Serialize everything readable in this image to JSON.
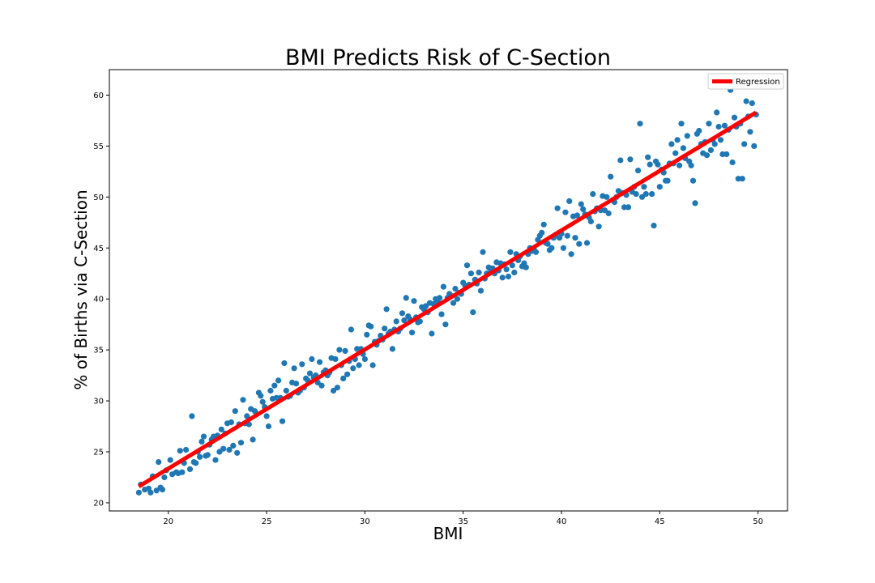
{
  "chart_data": {
    "type": "scatter",
    "title": "BMI Predicts Risk of C-Section",
    "xlabel": "BMI",
    "ylabel": "% of Births via C-Section",
    "xlim": [
      17.0,
      51.5
    ],
    "ylim": [
      19.2,
      62.5
    ],
    "xticks": [
      20,
      25,
      30,
      35,
      40,
      45,
      50
    ],
    "yticks": [
      20,
      25,
      30,
      35,
      40,
      45,
      50,
      55,
      60
    ],
    "grid": false,
    "legend": {
      "placement": "top-right",
      "entries": [
        "Regression"
      ]
    },
    "colors": {
      "points": "#1f77b4",
      "regression": "#ff0000"
    },
    "regression": {
      "name": "Regression",
      "x": [
        18.5,
        49.9
      ],
      "y": [
        21.6,
        58.3
      ]
    },
    "points": [
      [
        18.5,
        21.0
      ],
      [
        18.6,
        21.8
      ],
      [
        18.8,
        21.3
      ],
      [
        19.0,
        21.4
      ],
      [
        19.1,
        21.0
      ],
      [
        19.2,
        22.6
      ],
      [
        19.4,
        21.2
      ],
      [
        19.5,
        24.0
      ],
      [
        19.6,
        21.5
      ],
      [
        19.7,
        21.3
      ],
      [
        19.8,
        22.5
      ],
      [
        19.9,
        23.2
      ],
      [
        20.1,
        24.2
      ],
      [
        20.2,
        22.8
      ],
      [
        20.4,
        23.0
      ],
      [
        20.5,
        22.9
      ],
      [
        20.6,
        25.1
      ],
      [
        20.7,
        23.0
      ],
      [
        20.8,
        23.9
      ],
      [
        20.9,
        25.2
      ],
      [
        21.1,
        23.3
      ],
      [
        21.2,
        28.5
      ],
      [
        21.3,
        24.0
      ],
      [
        21.4,
        23.9
      ],
      [
        21.5,
        25.0
      ],
      [
        21.6,
        24.5
      ],
      [
        21.7,
        26.0
      ],
      [
        21.8,
        26.5
      ],
      [
        21.9,
        24.6
      ],
      [
        22.0,
        24.7
      ],
      [
        22.1,
        25.7
      ],
      [
        22.2,
        26.2
      ],
      [
        22.3,
        26.5
      ],
      [
        22.4,
        24.2
      ],
      [
        22.5,
        26.6
      ],
      [
        22.6,
        25.0
      ],
      [
        22.7,
        27.2
      ],
      [
        22.8,
        25.3
      ],
      [
        22.9,
        26.8
      ],
      [
        23.0,
        27.8
      ],
      [
        23.1,
        25.2
      ],
      [
        23.2,
        27.9
      ],
      [
        23.3,
        25.6
      ],
      [
        23.4,
        29.0
      ],
      [
        23.5,
        24.9
      ],
      [
        23.6,
        27.7
      ],
      [
        23.7,
        25.9
      ],
      [
        23.8,
        30.1
      ],
      [
        23.9,
        27.8
      ],
      [
        24.0,
        28.5
      ],
      [
        24.1,
        27.7
      ],
      [
        24.2,
        29.2
      ],
      [
        24.3,
        26.2
      ],
      [
        24.4,
        29.0
      ],
      [
        24.5,
        28.7
      ],
      [
        24.6,
        30.8
      ],
      [
        24.7,
        30.5
      ],
      [
        24.8,
        29.9
      ],
      [
        24.9,
        29.4
      ],
      [
        25.0,
        28.5
      ],
      [
        25.1,
        27.5
      ],
      [
        25.2,
        31.0
      ],
      [
        25.3,
        30.2
      ],
      [
        25.4,
        31.5
      ],
      [
        25.5,
        30.3
      ],
      [
        25.6,
        32.0
      ],
      [
        25.7,
        30.3
      ],
      [
        25.8,
        28.0
      ],
      [
        25.9,
        33.7
      ],
      [
        26.0,
        31.0
      ],
      [
        26.1,
        30.4
      ],
      [
        26.2,
        30.5
      ],
      [
        26.3,
        31.8
      ],
      [
        26.4,
        33.2
      ],
      [
        26.5,
        31.7
      ],
      [
        26.6,
        30.8
      ],
      [
        26.7,
        31.0
      ],
      [
        26.8,
        33.6
      ],
      [
        26.9,
        31.3
      ],
      [
        27.0,
        32.2
      ],
      [
        27.1,
        32.0
      ],
      [
        27.2,
        32.7
      ],
      [
        27.3,
        34.1
      ],
      [
        27.4,
        32.3
      ],
      [
        27.5,
        32.5
      ],
      [
        27.6,
        31.8
      ],
      [
        27.7,
        33.8
      ],
      [
        27.8,
        31.5
      ],
      [
        27.9,
        32.8
      ],
      [
        28.0,
        33.0
      ],
      [
        28.1,
        32.5
      ],
      [
        28.2,
        32.8
      ],
      [
        28.3,
        34.2
      ],
      [
        28.4,
        31.0
      ],
      [
        28.5,
        34.1
      ],
      [
        28.6,
        31.3
      ],
      [
        28.7,
        35.0
      ],
      [
        28.8,
        33.5
      ],
      [
        28.9,
        32.2
      ],
      [
        29.0,
        34.9
      ],
      [
        29.1,
        32.6
      ],
      [
        29.2,
        33.9
      ],
      [
        29.3,
        37.0
      ],
      [
        29.4,
        33.2
      ],
      [
        29.5,
        34.1
      ],
      [
        29.6,
        35.1
      ],
      [
        29.7,
        33.5
      ],
      [
        29.8,
        35.1
      ],
      [
        29.9,
        34.6
      ],
      [
        30.0,
        34.1
      ],
      [
        30.1,
        36.5
      ],
      [
        30.2,
        37.4
      ],
      [
        30.3,
        37.3
      ],
      [
        30.4,
        33.5
      ],
      [
        30.5,
        35.8
      ],
      [
        30.6,
        35.5
      ],
      [
        30.7,
        35.9
      ],
      [
        30.8,
        36.4
      ],
      [
        30.9,
        36.0
      ],
      [
        31.0,
        37.1
      ],
      [
        31.1,
        39.0
      ],
      [
        31.2,
        36.6
      ],
      [
        31.3,
        36.8
      ],
      [
        31.4,
        35.1
      ],
      [
        31.5,
        37.0
      ],
      [
        31.6,
        37.8
      ],
      [
        31.7,
        36.8
      ],
      [
        31.8,
        37.1
      ],
      [
        31.9,
        38.6
      ],
      [
        32.0,
        37.9
      ],
      [
        32.1,
        40.1
      ],
      [
        32.2,
        38.3
      ],
      [
        32.3,
        38.0
      ],
      [
        32.4,
        36.7
      ],
      [
        32.5,
        39.8
      ],
      [
        32.6,
        38.2
      ],
      [
        32.7,
        37.7
      ],
      [
        32.8,
        37.8
      ],
      [
        32.9,
        39.2
      ],
      [
        33.0,
        39.0
      ],
      [
        33.1,
        39.3
      ],
      [
        33.2,
        38.7
      ],
      [
        33.3,
        39.6
      ],
      [
        33.4,
        36.6
      ],
      [
        33.5,
        39.5
      ],
      [
        33.6,
        40.0
      ],
      [
        33.7,
        39.8
      ],
      [
        33.8,
        40.1
      ],
      [
        33.9,
        38.5
      ],
      [
        34.0,
        41.2
      ],
      [
        34.1,
        37.5
      ],
      [
        34.2,
        40.1
      ],
      [
        34.3,
        40.5
      ],
      [
        34.4,
        40.3
      ],
      [
        34.5,
        39.6
      ],
      [
        34.6,
        41.0
      ],
      [
        34.7,
        40.0
      ],
      [
        34.8,
        40.6
      ],
      [
        34.9,
        40.5
      ],
      [
        35.0,
        41.6
      ],
      [
        35.1,
        41.3
      ],
      [
        35.2,
        43.3
      ],
      [
        35.3,
        41.4
      ],
      [
        35.4,
        42.5
      ],
      [
        35.5,
        38.7
      ],
      [
        35.6,
        41.9
      ],
      [
        35.7,
        41.5
      ],
      [
        35.8,
        42.6
      ],
      [
        35.9,
        40.8
      ],
      [
        36.0,
        44.6
      ],
      [
        36.1,
        42.0
      ],
      [
        36.2,
        42.5
      ],
      [
        36.3,
        43.1
      ],
      [
        36.4,
        42.9
      ],
      [
        36.5,
        43.0
      ],
      [
        36.6,
        42.5
      ],
      [
        36.7,
        43.6
      ],
      [
        36.8,
        42.8
      ],
      [
        36.9,
        43.5
      ],
      [
        37.0,
        42.1
      ],
      [
        37.1,
        43.4
      ],
      [
        37.2,
        42.9
      ],
      [
        37.3,
        42.2
      ],
      [
        37.4,
        44.6
      ],
      [
        37.5,
        43.3
      ],
      [
        37.6,
        42.6
      ],
      [
        37.7,
        44.4
      ],
      [
        37.8,
        43.8
      ],
      [
        37.9,
        44.2
      ],
      [
        38.0,
        43.2
      ],
      [
        38.1,
        43.5
      ],
      [
        38.2,
        43.1
      ],
      [
        38.3,
        44.4
      ],
      [
        38.4,
        45.0
      ],
      [
        38.5,
        44.7
      ],
      [
        38.6,
        44.9
      ],
      [
        38.7,
        44.6
      ],
      [
        38.8,
        45.8
      ],
      [
        38.9,
        46.2
      ],
      [
        39.0,
        46.5
      ],
      [
        39.1,
        47.3
      ],
      [
        39.2,
        45.5
      ],
      [
        39.3,
        45.4
      ],
      [
        39.4,
        44.8
      ],
      [
        39.5,
        45.0
      ],
      [
        39.6,
        46.0
      ],
      [
        39.7,
        46.3
      ],
      [
        39.8,
        48.9
      ],
      [
        39.9,
        46.0
      ],
      [
        40.0,
        46.4
      ],
      [
        40.1,
        45.0
      ],
      [
        40.2,
        48.5
      ],
      [
        40.3,
        46.2
      ],
      [
        40.4,
        49.6
      ],
      [
        40.5,
        44.4
      ],
      [
        40.6,
        48.1
      ],
      [
        40.7,
        46.0
      ],
      [
        40.8,
        48.2
      ],
      [
        40.9,
        45.4
      ],
      [
        41.0,
        49.3
      ],
      [
        41.1,
        48.8
      ],
      [
        41.2,
        48.3
      ],
      [
        41.3,
        45.5
      ],
      [
        41.4,
        48.0
      ],
      [
        41.5,
        47.6
      ],
      [
        41.6,
        50.3
      ],
      [
        41.7,
        48.6
      ],
      [
        41.8,
        48.9
      ],
      [
        41.9,
        47.1
      ],
      [
        42.0,
        48.7
      ],
      [
        42.1,
        50.1
      ],
      [
        42.2,
        48.7
      ],
      [
        42.3,
        50.0
      ],
      [
        42.4,
        48.4
      ],
      [
        42.5,
        52.0
      ],
      [
        42.6,
        49.7
      ],
      [
        42.7,
        49.5
      ],
      [
        42.8,
        50.0
      ],
      [
        42.9,
        50.6
      ],
      [
        43.0,
        53.6
      ],
      [
        43.1,
        50.4
      ],
      [
        43.2,
        49.0
      ],
      [
        43.3,
        50.2
      ],
      [
        43.4,
        49.0
      ],
      [
        43.5,
        53.7
      ],
      [
        43.6,
        50.5
      ],
      [
        43.7,
        51.0
      ],
      [
        43.8,
        50.3
      ],
      [
        43.9,
        52.6
      ],
      [
        44.0,
        57.2
      ],
      [
        44.1,
        50.0
      ],
      [
        44.2,
        51.0
      ],
      [
        44.3,
        50.3
      ],
      [
        44.4,
        53.9
      ],
      [
        44.5,
        53.2
      ],
      [
        44.6,
        50.3
      ],
      [
        44.7,
        47.2
      ],
      [
        44.8,
        53.5
      ],
      [
        44.9,
        53.2
      ],
      [
        45.0,
        51.0
      ],
      [
        45.1,
        52.7
      ],
      [
        45.2,
        52.4
      ],
      [
        45.3,
        51.6
      ],
      [
        45.4,
        51.6
      ],
      [
        45.5,
        53.3
      ],
      [
        45.6,
        55.2
      ],
      [
        45.7,
        53.3
      ],
      [
        45.8,
        54.3
      ],
      [
        45.9,
        55.6
      ],
      [
        46.0,
        53.1
      ],
      [
        46.1,
        57.2
      ],
      [
        46.2,
        54.8
      ],
      [
        46.3,
        53.8
      ],
      [
        46.4,
        56.0
      ],
      [
        46.5,
        53.5
      ],
      [
        46.6,
        53.1
      ],
      [
        46.7,
        51.6
      ],
      [
        46.8,
        49.4
      ],
      [
        46.9,
        56.2
      ],
      [
        47.0,
        56.5
      ],
      [
        47.1,
        55.2
      ],
      [
        47.2,
        54.3
      ],
      [
        47.3,
        55.4
      ],
      [
        47.4,
        54.1
      ],
      [
        47.5,
        57.2
      ],
      [
        47.6,
        54.6
      ],
      [
        47.7,
        55.6
      ],
      [
        47.8,
        55.2
      ],
      [
        47.9,
        58.3
      ],
      [
        48.0,
        56.9
      ],
      [
        48.1,
        55.6
      ],
      [
        48.2,
        54.2
      ],
      [
        48.3,
        57.0
      ],
      [
        48.4,
        54.2
      ],
      [
        48.5,
        56.6
      ],
      [
        48.6,
        60.5
      ],
      [
        48.7,
        53.4
      ],
      [
        48.8,
        57.8
      ],
      [
        48.9,
        56.9
      ],
      [
        49.0,
        51.8
      ],
      [
        49.1,
        57.2
      ],
      [
        49.2,
        51.8
      ],
      [
        49.3,
        55.2
      ],
      [
        49.4,
        59.4
      ],
      [
        49.5,
        57.9
      ],
      [
        49.6,
        56.4
      ],
      [
        49.7,
        59.2
      ],
      [
        49.8,
        55.0
      ],
      [
        49.9,
        58.1
      ]
    ]
  }
}
